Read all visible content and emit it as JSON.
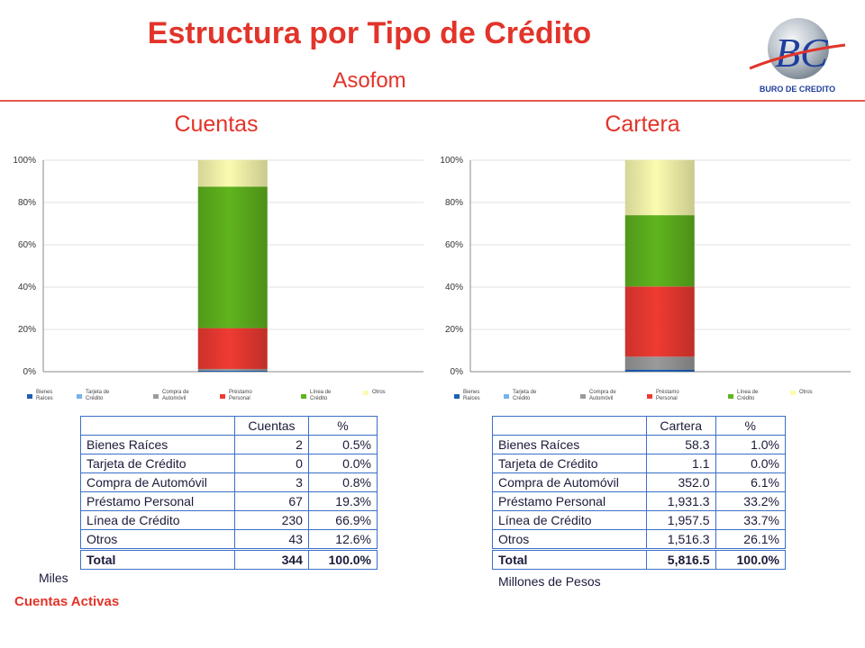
{
  "header": {
    "title": "Estructura por Tipo de Crédito",
    "subtitle": "Asofom",
    "logo_text": "BURO DE CREDITO"
  },
  "legend": [
    {
      "label": "Bienes Raíces",
      "color": "#1f5fb4"
    },
    {
      "label": "Tarjeta de Crédito",
      "color": "#76b3ec"
    },
    {
      "label": "Compra de Automóvil",
      "color": "#9a9a9a"
    },
    {
      "label": "Préstamo Personal",
      "color": "#ef3b32"
    },
    {
      "label": "Línea de Crédito",
      "color": "#5fb41e"
    },
    {
      "label": "Otros",
      "color": "#fbfbb0"
    }
  ],
  "chart_data": [
    {
      "type": "bar",
      "stacked": true,
      "title": "Cuentas",
      "yticks": [
        "0%",
        "20%",
        "40%",
        "60%",
        "80%",
        "100%"
      ],
      "ylim": [
        0,
        100
      ],
      "grid": true,
      "legend_position": "bottom",
      "series": [
        {
          "name": "Bienes Raíces",
          "values": [
            0.5
          ]
        },
        {
          "name": "Tarjeta de Crédito",
          "values": [
            0.0
          ]
        },
        {
          "name": "Compra de Automóvil",
          "values": [
            0.8
          ]
        },
        {
          "name": "Préstamo Personal",
          "values": [
            19.3
          ]
        },
        {
          "name": "Línea de Crédito",
          "values": [
            66.9
          ]
        },
        {
          "name": "Otros",
          "values": [
            12.6
          ]
        }
      ]
    },
    {
      "type": "bar",
      "stacked": true,
      "title": "Cartera",
      "yticks": [
        "0%",
        "20%",
        "40%",
        "60%",
        "80%",
        "100%"
      ],
      "ylim": [
        0,
        100
      ],
      "grid": true,
      "legend_position": "bottom",
      "series": [
        {
          "name": "Bienes Raíces",
          "values": [
            1.0
          ]
        },
        {
          "name": "Tarjeta de Crédito",
          "values": [
            0.0
          ]
        },
        {
          "name": "Compra de Automóvil",
          "values": [
            6.1
          ]
        },
        {
          "name": "Préstamo Personal",
          "values": [
            33.2
          ]
        },
        {
          "name": "Línea de Crédito",
          "values": [
            33.7
          ]
        },
        {
          "name": "Otros",
          "values": [
            26.1
          ]
        }
      ]
    }
  ],
  "tables": {
    "cuentas": {
      "header": [
        "",
        "Cuentas",
        "%"
      ],
      "rows": [
        [
          "Bienes Raíces",
          "2",
          "0.5%"
        ],
        [
          "Tarjeta de Crédito",
          "0",
          "0.0%"
        ],
        [
          "Compra de Automóvil",
          "3",
          "0.8%"
        ],
        [
          "Préstamo Personal",
          "67",
          "19.3%"
        ],
        [
          "Línea de Crédito",
          "230",
          "66.9%"
        ],
        [
          "Otros",
          "43",
          "12.6%"
        ],
        [
          "Total",
          "344",
          "100.0%"
        ]
      ]
    },
    "cartera": {
      "header": [
        "",
        "Cartera",
        "%"
      ],
      "rows": [
        [
          "Bienes Raíces",
          "58.3",
          "1.0%"
        ],
        [
          "Tarjeta de Crédito",
          "1.1",
          "0.0%"
        ],
        [
          "Compra de Automóvil",
          "352.0",
          "6.1%"
        ],
        [
          "Préstamo Personal",
          "1,931.3",
          "33.2%"
        ],
        [
          "Línea de Crédito",
          "1,957.5",
          "33.7%"
        ],
        [
          "Otros",
          "1,516.3",
          "26.1%"
        ],
        [
          "Total",
          "5,816.5",
          "100.0%"
        ]
      ]
    }
  },
  "notes": {
    "miles": "Miles",
    "millones": "Millones de Pesos",
    "footer": "Cuentas Activas"
  }
}
